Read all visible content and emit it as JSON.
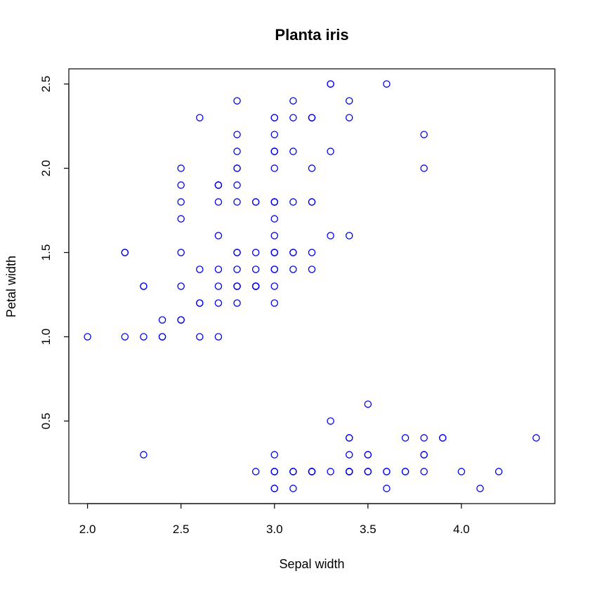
{
  "chart_data": {
    "type": "scatter",
    "title": "Planta iris",
    "xlabel": "Sepal width",
    "ylabel": "Petal width",
    "xlim": [
      1.9,
      4.5
    ],
    "ylim": [
      0.01,
      2.59
    ],
    "xticks": [
      "2.0",
      "2.5",
      "3.0",
      "3.5",
      "4.0"
    ],
    "yticks": [
      "0.5",
      "1.0",
      "1.5",
      "2.0",
      "2.5"
    ],
    "grid": false,
    "point_color": "#0000ff",
    "x": [
      3.5,
      3.0,
      3.2,
      3.1,
      3.6,
      3.9,
      3.4,
      3.4,
      2.9,
      3.1,
      3.7,
      3.4,
      3.0,
      3.0,
      4.0,
      4.4,
      3.9,
      3.5,
      3.8,
      3.8,
      3.4,
      3.7,
      3.6,
      3.3,
      3.4,
      3.0,
      3.4,
      3.5,
      3.4,
      3.2,
      3.1,
      3.4,
      4.1,
      4.2,
      3.1,
      3.2,
      3.5,
      3.6,
      3.0,
      3.4,
      3.5,
      2.3,
      3.2,
      3.5,
      3.8,
      3.0,
      3.8,
      3.2,
      3.7,
      3.3,
      3.2,
      3.2,
      3.1,
      2.3,
      2.8,
      2.8,
      3.3,
      2.4,
      2.9,
      2.7,
      2.0,
      3.0,
      2.2,
      2.9,
      2.9,
      3.1,
      3.0,
      2.7,
      2.2,
      2.5,
      3.2,
      2.8,
      2.5,
      2.8,
      2.9,
      3.0,
      2.8,
      3.0,
      2.9,
      2.6,
      2.4,
      2.4,
      2.7,
      2.7,
      3.0,
      3.4,
      3.1,
      2.3,
      3.0,
      2.5,
      2.6,
      3.0,
      2.6,
      2.3,
      2.7,
      3.0,
      2.9,
      2.9,
      2.5,
      2.8,
      3.3,
      2.7,
      3.0,
      2.9,
      3.0,
      3.0,
      2.5,
      2.9,
      2.5,
      3.6,
      3.2,
      2.7,
      3.0,
      2.5,
      2.8,
      3.2,
      3.0,
      3.8,
      2.6,
      2.2,
      3.2,
      2.8,
      2.8,
      2.7,
      3.3,
      3.2,
      2.8,
      3.0,
      2.8,
      3.0,
      2.8,
      3.8,
      2.8,
      2.8,
      2.6,
      3.0,
      3.4,
      3.1,
      3.0,
      3.1,
      3.1,
      3.1,
      2.7,
      3.2,
      3.3,
      3.0,
      2.5,
      3.0,
      3.4,
      3.0
    ],
    "y": [
      0.2,
      0.2,
      0.2,
      0.2,
      0.2,
      0.4,
      0.3,
      0.2,
      0.2,
      0.1,
      0.2,
      0.2,
      0.1,
      0.1,
      0.2,
      0.4,
      0.4,
      0.3,
      0.3,
      0.3,
      0.2,
      0.4,
      0.2,
      0.5,
      0.2,
      0.2,
      0.4,
      0.2,
      0.2,
      0.2,
      0.2,
      0.4,
      0.1,
      0.2,
      0.2,
      0.2,
      0.2,
      0.1,
      0.2,
      0.2,
      0.3,
      0.3,
      0.2,
      0.6,
      0.4,
      0.3,
      0.2,
      0.2,
      0.2,
      0.2,
      1.4,
      1.5,
      1.5,
      1.3,
      1.5,
      1.3,
      1.6,
      1.0,
      1.3,
      1.4,
      1.0,
      1.5,
      1.0,
      1.4,
      1.3,
      1.4,
      1.5,
      1.0,
      1.5,
      1.1,
      1.8,
      1.3,
      1.5,
      1.2,
      1.3,
      1.4,
      1.4,
      1.7,
      1.5,
      1.0,
      1.1,
      1.0,
      1.2,
      1.6,
      1.5,
      1.6,
      1.5,
      1.3,
      1.3,
      1.3,
      1.2,
      1.4,
      1.2,
      1.0,
      1.3,
      1.2,
      1.3,
      1.3,
      1.1,
      1.3,
      2.5,
      1.9,
      2.1,
      1.8,
      2.2,
      2.1,
      1.7,
      1.8,
      1.8,
      2.5,
      2.0,
      1.9,
      2.1,
      2.0,
      2.4,
      2.3,
      1.8,
      2.2,
      2.3,
      1.5,
      2.3,
      2.0,
      2.0,
      1.8,
      2.1,
      1.8,
      1.8,
      1.8,
      2.1,
      1.6,
      1.9,
      2.0,
      2.2,
      1.5,
      1.4,
      2.3,
      2.4,
      1.8,
      1.8,
      2.1,
      2.4,
      2.3,
      1.9,
      2.3,
      2.5,
      2.3,
      1.9,
      2.0,
      2.3,
      1.8
    ]
  }
}
